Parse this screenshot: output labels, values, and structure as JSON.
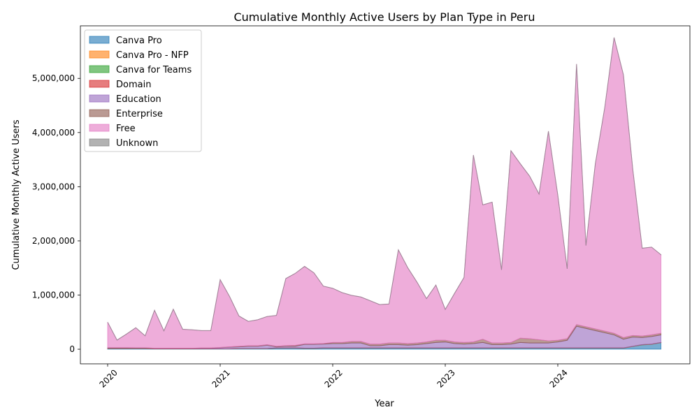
{
  "chart_data": {
    "type": "area",
    "stacked": true,
    "title": "Cumulative Monthly Active Users by Plan Type in Peru",
    "xlabel": "Year",
    "ylabel": "Cumulative Monthly Active Users",
    "x_ticks": [
      "2020",
      "2021",
      "2022",
      "2023",
      "2024"
    ],
    "y_ticks": [
      "0",
      "1,000,000",
      "2,000,000",
      "3,000,000",
      "4,000,000",
      "5,000,000"
    ],
    "ylim": [
      -270000,
      5970000
    ],
    "x_start": "2020-01",
    "x_end": "2024-12",
    "legend_position": "upper left",
    "series": [
      {
        "name": "Canva Pro",
        "color": "#1f77b4",
        "values": [
          10000,
          10000,
          10000,
          10000,
          10000,
          5000,
          5000,
          5000,
          5000,
          5000,
          5000,
          5000,
          5000,
          5000,
          10000,
          10000,
          10000,
          10000,
          20000,
          20000,
          20000,
          15000,
          15000,
          20000,
          20000,
          20000,
          20000,
          20000,
          20000,
          20000,
          20000,
          20000,
          20000,
          20000,
          20000,
          20000,
          20000,
          20000,
          20000,
          20000,
          20000,
          20000,
          20000,
          20000,
          20000,
          20000,
          20000,
          20000,
          20000,
          20000,
          20000,
          20000,
          20000,
          20000,
          20000,
          20000,
          50000,
          80000,
          90000,
          120000
        ]
      },
      {
        "name": "Canva Pro - NFP",
        "color": "#ff7f0e",
        "values": [
          2000,
          2000,
          2000,
          2000,
          2000,
          2000,
          2000,
          2000,
          2000,
          2000,
          2000,
          2000,
          2000,
          2000,
          2000,
          2000,
          2000,
          2000,
          2000,
          2000,
          2000,
          2000,
          2000,
          2000,
          2000,
          2000,
          2000,
          2000,
          2000,
          2000,
          2000,
          2000,
          2000,
          2000,
          2000,
          2000,
          2000,
          2000,
          2000,
          2000,
          2000,
          2000,
          2000,
          2000,
          2000,
          2000,
          2000,
          2000,
          2000,
          2000,
          2000,
          2000,
          2000,
          2000,
          2000,
          2000,
          2000,
          2000,
          2000,
          2000
        ]
      },
      {
        "name": "Canva for Teams",
        "color": "#2ca02c",
        "values": [
          1000,
          1000,
          1000,
          1000,
          1000,
          1000,
          1000,
          1000,
          1000,
          1000,
          1000,
          1000,
          1000,
          1000,
          1000,
          1000,
          1000,
          1000,
          2000,
          2000,
          2000,
          2000,
          2000,
          2000,
          2000,
          2000,
          2000,
          2000,
          2000,
          2000,
          2000,
          2000,
          2000,
          2000,
          2000,
          2000,
          2000,
          2000,
          2000,
          2000,
          2000,
          2000,
          2000,
          2000,
          2000,
          2000,
          2000,
          2000,
          2000,
          2000,
          2000,
          2000,
          2000,
          2000,
          2000,
          2000,
          2000,
          2000,
          2000,
          2000
        ]
      },
      {
        "name": "Domain",
        "color": "#d62728",
        "values": [
          500,
          500,
          500,
          500,
          500,
          500,
          500,
          500,
          500,
          500,
          500,
          500,
          500,
          500,
          500,
          500,
          500,
          500,
          500,
          500,
          500,
          500,
          500,
          500,
          500,
          500,
          500,
          500,
          500,
          500,
          500,
          500,
          500,
          500,
          500,
          500,
          500,
          500,
          500,
          500,
          500,
          500,
          500,
          500,
          500,
          500,
          500,
          500,
          500,
          500,
          500,
          500,
          500,
          500,
          500,
          500,
          500,
          500,
          500,
          500
        ]
      },
      {
        "name": "Education",
        "color": "#9467bd",
        "values": [
          5000,
          5000,
          5000,
          5000,
          5000,
          5000,
          5000,
          5000,
          5000,
          5000,
          10000,
          10000,
          20000,
          30000,
          30000,
          40000,
          40000,
          60000,
          20000,
          30000,
          30000,
          70000,
          70000,
          70000,
          80000,
          80000,
          90000,
          90000,
          40000,
          40000,
          60000,
          60000,
          50000,
          60000,
          80000,
          100000,
          110000,
          80000,
          70000,
          80000,
          100000,
          60000,
          60000,
          70000,
          100000,
          90000,
          90000,
          90000,
          110000,
          140000,
          400000,
          360000,
          320000,
          280000,
          240000,
          160000,
          170000,
          130000,
          140000,
          140000
        ]
      },
      {
        "name": "Enterprise",
        "color": "#8c564b",
        "values": [
          10000,
          10000,
          10000,
          8000,
          8000,
          5000,
          5000,
          5000,
          5000,
          5000,
          5000,
          5000,
          5000,
          5000,
          10000,
          10000,
          10000,
          10000,
          10000,
          10000,
          15000,
          10000,
          10000,
          10000,
          20000,
          20000,
          30000,
          30000,
          30000,
          30000,
          30000,
          30000,
          30000,
          30000,
          30000,
          40000,
          30000,
          30000,
          30000,
          30000,
          60000,
          30000,
          30000,
          30000,
          80000,
          80000,
          60000,
          40000,
          30000,
          30000,
          30000,
          30000,
          30000,
          30000,
          30000,
          30000,
          30000,
          30000,
          30000,
          30000
        ]
      },
      {
        "name": "Free",
        "color": "#e377c2",
        "values": [
          470000,
          140000,
          250000,
          370000,
          220000,
          700000,
          320000,
          720000,
          350000,
          340000,
          320000,
          320000,
          1250000,
          930000,
          560000,
          450000,
          480000,
          520000,
          570000,
          1240000,
          1330000,
          1430000,
          1310000,
          1060000,
          1000000,
          920000,
          850000,
          820000,
          800000,
          730000,
          720000,
          1720000,
          1400000,
          1120000,
          800000,
          1020000,
          570000,
          900000,
          1200000,
          3450000,
          2480000,
          2600000,
          1350000,
          3540000,
          3220000,
          3000000,
          2690000,
          3870000,
          2680000,
          1290000,
          4810000,
          1500000,
          3050000,
          4120000,
          5460000,
          4850000,
          3060000,
          1620000,
          1620000,
          1450000
        ]
      },
      {
        "name": "Unknown",
        "color": "#7f7f7f",
        "values": [
          500,
          500,
          500,
          500,
          500,
          500,
          500,
          500,
          500,
          500,
          500,
          500,
          500,
          500,
          500,
          500,
          500,
          500,
          500,
          500,
          500,
          500,
          500,
          500,
          500,
          500,
          500,
          500,
          500,
          500,
          500,
          500,
          500,
          500,
          500,
          500,
          500,
          500,
          500,
          500,
          500,
          500,
          500,
          500,
          500,
          500,
          500,
          500,
          500,
          500,
          500,
          500,
          500,
          500,
          500,
          500,
          500,
          500,
          500,
          500
        ]
      }
    ]
  }
}
